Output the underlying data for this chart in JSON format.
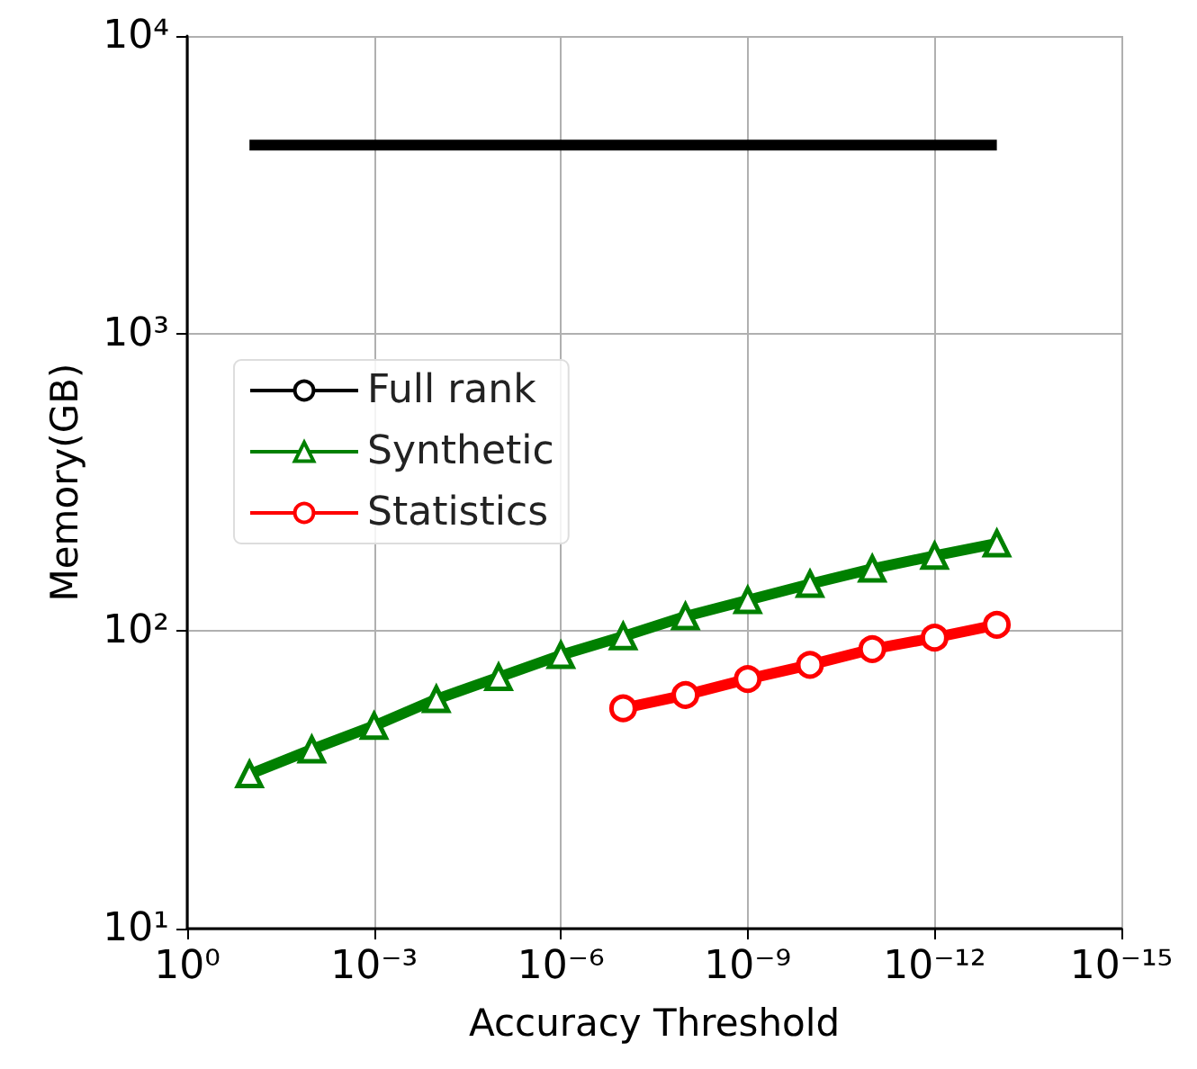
{
  "chart_data": {
    "type": "line",
    "xlabel": "Accuracy Threshold",
    "ylabel": "Memory(GB)",
    "log": "xy",
    "grid": true,
    "legend": "top left",
    "xlim": [
      1,
      1e-15
    ],
    "xticks": [
      {
        "value": 1,
        "label": "10⁰"
      },
      {
        "value": 0.001,
        "label": "10⁻³"
      },
      {
        "value": 1e-06,
        "label": "10⁻⁶"
      },
      {
        "value": 1e-09,
        "label": "10⁻⁹"
      },
      {
        "value": 1e-12,
        "label": "10⁻¹²"
      },
      {
        "value": 1e-15,
        "label": "10⁻¹⁵"
      }
    ],
    "ylim": [
      10,
      10000
    ],
    "yticks": [
      {
        "value": 10,
        "label": "10¹"
      },
      {
        "value": 100,
        "label": "10²"
      },
      {
        "value": 1000,
        "label": "10³"
      },
      {
        "value": 10000,
        "label": "10⁴"
      }
    ],
    "series": [
      {
        "name": "Full rank",
        "color": "#000000",
        "marker": "none",
        "x": [
          0.1,
          1e-13
        ],
        "values": [
          4300,
          4300
        ]
      },
      {
        "name": "Synthetic",
        "color": "#008000",
        "marker": "triangle",
        "x": [
          0.1,
          0.01,
          0.001,
          0.0001,
          1e-05,
          1e-06,
          1e-07,
          1e-08,
          1e-09,
          1e-10,
          1e-11,
          1e-12,
          1e-13
        ],
        "values": [
          33,
          40,
          48,
          59,
          70,
          83,
          96,
          112,
          127,
          144,
          162,
          179,
          197
        ]
      },
      {
        "name": "Statistics",
        "color": "#ff0000",
        "marker": "circle",
        "x": [
          1e-07,
          1e-08,
          1e-09,
          1e-10,
          1e-11,
          1e-12,
          1e-13
        ],
        "values": [
          55,
          61,
          69,
          77,
          87,
          95,
          105
        ]
      }
    ]
  }
}
